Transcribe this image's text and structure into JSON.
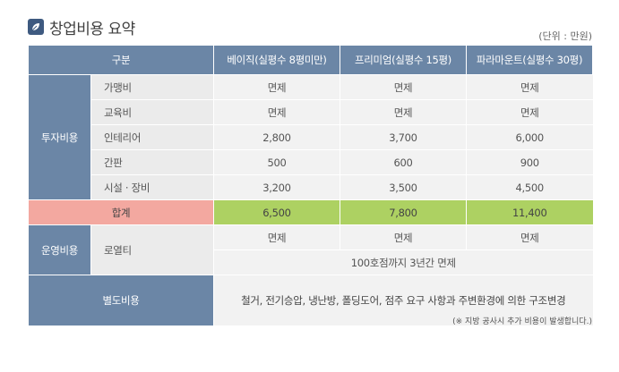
{
  "title": "창업비용 요약",
  "unit": "(단위 : 만원)",
  "header": {
    "category": "구분",
    "plans": [
      "베이직(실평수 8평미만)",
      "프리미엄(실평수 15평)",
      "파라마운트(실평수 30평)"
    ]
  },
  "investment": {
    "label": "투자비용",
    "rows": [
      {
        "item": "가맹비",
        "values": [
          "면제",
          "면제",
          "면제"
        ]
      },
      {
        "item": "교육비",
        "values": [
          "면제",
          "면제",
          "면제"
        ]
      },
      {
        "item": "인테리어",
        "values": [
          "2,800",
          "3,700",
          "6,000"
        ]
      },
      {
        "item": "간판",
        "values": [
          "500",
          "600",
          "900"
        ]
      },
      {
        "item": "시설 · 장비",
        "values": [
          "3,200",
          "3,500",
          "4,500"
        ]
      }
    ]
  },
  "total": {
    "label": "합계",
    "values": [
      "6,500",
      "7,800",
      "11,400"
    ]
  },
  "operating": {
    "label": "운영비용",
    "item": "로열티",
    "values": [
      "면제",
      "면제",
      "면제"
    ],
    "note": "100호점까지 3년간 면제"
  },
  "extra": {
    "label": "별도비용",
    "text": "철거, 전기승압, 냉난방, 폴딩도어, 점주 요구 사항과 주변환경에 의한 구조변경"
  },
  "footnote": "(※ 지방 공사시 추가 비용이 발생합니다.)",
  "colors": {
    "header": "#6b86a6",
    "total_label": "#f3a8a0",
    "total_values": "#add162",
    "cell": "#f2f2f2"
  }
}
